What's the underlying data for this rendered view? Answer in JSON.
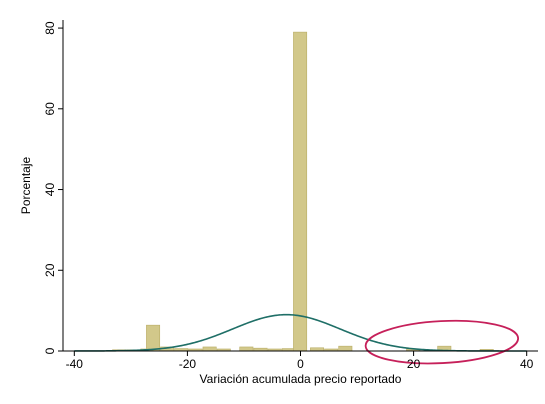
{
  "chart_data": {
    "type": "bar",
    "xlabel": "Variación acumulada precio reportado",
    "ylabel": "Porcentaje",
    "xlim": [
      -42,
      42
    ],
    "ylim": [
      0,
      82
    ],
    "xticks": [
      -40,
      -20,
      0,
      20,
      40
    ],
    "xtick_labels": [
      "-40",
      "-20",
      "0",
      "20",
      "40"
    ],
    "yticks": [
      0,
      20,
      40,
      60,
      80
    ],
    "ytick_labels": [
      "0",
      "20",
      "40",
      "60",
      "80"
    ],
    "bin_width": 2.5,
    "bars": [
      {
        "center": -32,
        "value": 0.3
      },
      {
        "center": -29.5,
        "value": 0.3
      },
      {
        "center": -27,
        "value": 0.5
      },
      {
        "center": -26,
        "value": 6.4
      },
      {
        "center": -23.5,
        "value": 1.0
      },
      {
        "center": -21,
        "value": 0.6
      },
      {
        "center": -18.5,
        "value": 0.5
      },
      {
        "center": -16,
        "value": 1.0
      },
      {
        "center": -13.5,
        "value": 0.5
      },
      {
        "center": -9.5,
        "value": 1.0
      },
      {
        "center": -7,
        "value": 0.7
      },
      {
        "center": -4.5,
        "value": 0.5
      },
      {
        "center": -2,
        "value": 0.6
      },
      {
        "center": 0,
        "value": 79.0
      },
      {
        "center": 3,
        "value": 0.8
      },
      {
        "center": 5.5,
        "value": 0.5
      },
      {
        "center": 8,
        "value": 1.2
      },
      {
        "center": 20,
        "value": 0.5
      },
      {
        "center": 25.5,
        "value": 1.2
      },
      {
        "center": 33,
        "value": 0.4
      }
    ],
    "density_curve": {
      "type": "normal",
      "mean": -2.5,
      "sd": 9.5,
      "peak": 9.0,
      "color": "#1f6f67"
    },
    "annotation": {
      "shape": "ellipse",
      "center": [
        25,
        2.2
      ],
      "x_radius": 13.5,
      "y_radius": 5.2,
      "color": "#c6205a"
    },
    "bar_color": "#d2c88a",
    "grid": false,
    "legend": "none"
  }
}
